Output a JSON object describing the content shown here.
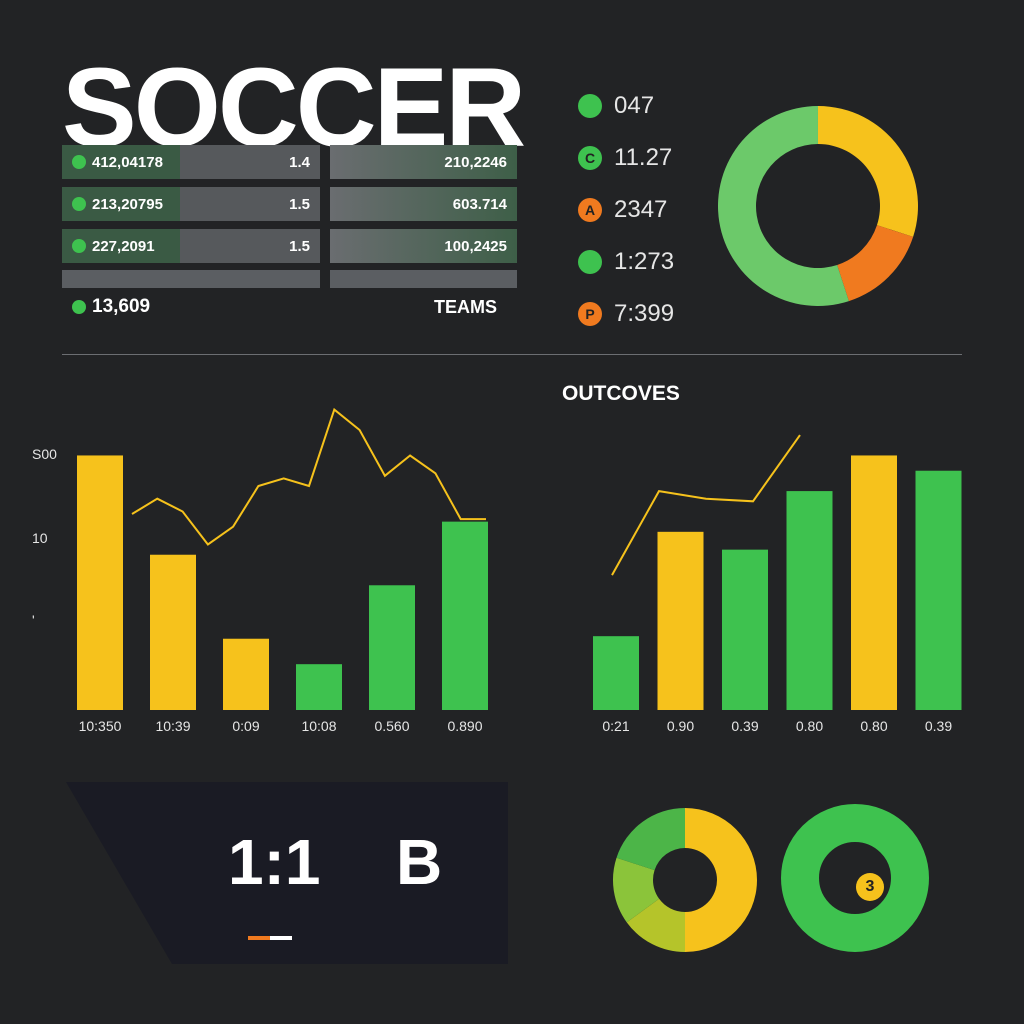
{
  "header": {
    "title": "SOCCER",
    "teams_label": "TEAMS",
    "total": "13,609"
  },
  "stats": [
    {
      "a": "412,04178",
      "b": "1.4",
      "c": "210,2246"
    },
    {
      "a": "213,20795",
      "b": "1.5",
      "c": "603.714"
    },
    {
      "a": "227,2091",
      "b": "1.5",
      "c": "100,2425"
    }
  ],
  "legend": [
    {
      "icon": "person-icon",
      "glyph": "",
      "color": "#3ec24f",
      "value": "047"
    },
    {
      "icon": "c-circle-icon",
      "glyph": "C",
      "color": "#3ec24f",
      "value": "11.27"
    },
    {
      "icon": "a-circle-icon",
      "glyph": "A",
      "color": "#f07a1f",
      "value": "2347"
    },
    {
      "icon": "person-icon",
      "glyph": "",
      "color": "#3ec24f",
      "value": "1:273"
    },
    {
      "icon": "p-circle-icon",
      "glyph": "P",
      "color": "#f07a1f",
      "value": "7:399"
    }
  ],
  "outcomes": {
    "title": "OUTCOVES"
  },
  "score": {
    "value": "1:1",
    "team": "B"
  },
  "colors": {
    "yellow": "#f6c21c",
    "green": "#3ec24f",
    "orange": "#f07a1f",
    "lightgreen": "#6cc96a",
    "olive": "#9dbd2e"
  },
  "chart_data": [
    {
      "type": "pie",
      "values": [
        30,
        15,
        55
      ],
      "colors": [
        "#f6c21c",
        "#f07a1f",
        "#6cc96a"
      ]
    },
    {
      "type": "bar",
      "yticks": [
        "S00",
        "10",
        "'"
      ],
      "categories": [
        "10:350",
        "10:39",
        "0:09",
        "10:08",
        "0.560",
        "0.890"
      ],
      "values": [
        100,
        61,
        28,
        18,
        49,
        74
      ],
      "colors": [
        "#f6c21c",
        "#f6c21c",
        "#f6c21c",
        "#3ec24f",
        "#3ec24f",
        "#3ec24f"
      ],
      "line": [
        77,
        83,
        78,
        65,
        72,
        88,
        91,
        88,
        118,
        110,
        92,
        100,
        93,
        75,
        75
      ],
      "ylim": [
        0,
        110
      ]
    },
    {
      "type": "bar",
      "categories": [
        "0:21",
        "0.90",
        "0.39",
        "0.80",
        "0.80",
        "0.39"
      ],
      "values": [
        29,
        70,
        63,
        86,
        100,
        94
      ],
      "colors": [
        "#3ec24f",
        "#f6c21c",
        "#3ec24f",
        "#3ec24f",
        "#f6c21c",
        "#3ec24f"
      ],
      "line": [
        53,
        86,
        83,
        82,
        108
      ],
      "ylim": [
        0,
        110
      ]
    },
    {
      "type": "pie",
      "values": [
        50,
        15,
        15,
        20
      ],
      "colors": [
        "#f6c21c",
        "#b5c42a",
        "#8bc43a",
        "#4cb548"
      ]
    },
    {
      "type": "pie",
      "values": [
        100
      ],
      "colors": [
        "#3ec24f"
      ],
      "label": "3"
    }
  ]
}
